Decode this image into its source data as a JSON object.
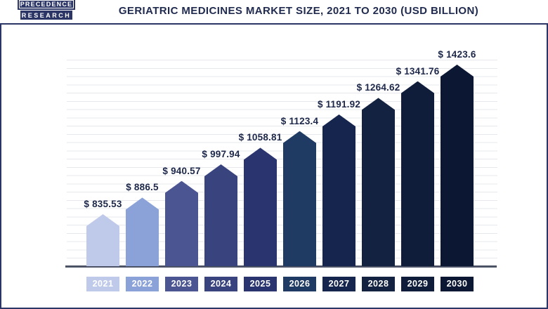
{
  "logo": {
    "line1": "PRECEDENCE",
    "line2": "RESEARCH"
  },
  "header": {
    "title": "GERIATRIC MEDICINES MARKET SIZE, 2021 TO 2030 (USD BILLION)"
  },
  "chart_data": {
    "type": "bar",
    "title": "Geriatric Medicines Market Size, 2021 to 2030 (USD Billion)",
    "unit": "USD Billion",
    "categories": [
      "2021",
      "2022",
      "2023",
      "2024",
      "2025",
      "2026",
      "2027",
      "2028",
      "2029",
      "2030"
    ],
    "values": [
      835.53,
      886.5,
      940.57,
      997.94,
      1058.81,
      1123.4,
      1191.92,
      1264.62,
      1341.76,
      1423.6
    ],
    "value_labels": [
      "$ 835.53",
      "$ 886.5",
      "$ 940.57",
      "$ 997.94",
      "$ 1058.81",
      "$ 1123.4",
      "$ 1191.92",
      "$ 1264.62",
      "$ 1341.76",
      "$ 1423.6"
    ],
    "bar_colors": [
      "#bfc9ea",
      "#8ba2d8",
      "#4a5591",
      "#39447f",
      "#2a356f",
      "#1f3a63",
      "#16254d",
      "#132240",
      "#0f1d3b",
      "#0c1734"
    ],
    "bar_shape": "pentagon-top",
    "grid": true,
    "y_axis_labels_visible": false,
    "legend_position": "none"
  },
  "colors": {
    "accent_navy": "#2b3566",
    "title_text": "#1f2a4e",
    "value_label_text": "#1c2749",
    "baseline": "#4c5366",
    "gridline": "#e7e8ee",
    "year_label_text": "#ffffff"
  }
}
